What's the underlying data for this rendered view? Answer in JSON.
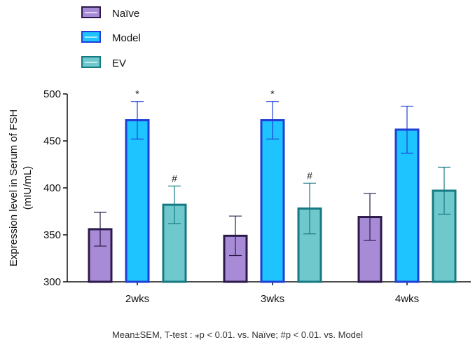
{
  "chart_data": {
    "type": "bar",
    "categories": [
      "2wks",
      "3wks",
      "4wks"
    ],
    "series": [
      {
        "name": "Naïve",
        "values": [
          356,
          349,
          369
        ],
        "errors": [
          18,
          21,
          25
        ],
        "fill": "#a88bd6",
        "stroke": "#2c1a4a",
        "marks": [
          "",
          "",
          ""
        ]
      },
      {
        "name": "Model",
        "values": [
          472,
          472,
          462
        ],
        "errors": [
          20,
          20,
          25
        ],
        "fill": "#1ec4ff",
        "stroke": "#1f3fd6",
        "marks": [
          "*",
          "*",
          ""
        ]
      },
      {
        "name": "EV",
        "values": [
          382,
          378,
          397
        ],
        "errors": [
          20,
          27,
          25
        ],
        "fill": "#6fc8cc",
        "stroke": "#167a82",
        "marks": [
          "#",
          "#",
          ""
        ]
      }
    ],
    "ylabel_line1": "Expression level in Serum of FSH",
    "ylabel_line2": "(mIU/mL)",
    "ylim": [
      300,
      500
    ],
    "yticks": [
      300,
      350,
      400,
      450,
      500
    ],
    "grid": false,
    "legend_position": "top-left",
    "footnote": "Mean±SEM, T-test : ⁎p < 0.01. vs. Naïve; #p < 0.01. vs. Model"
  }
}
